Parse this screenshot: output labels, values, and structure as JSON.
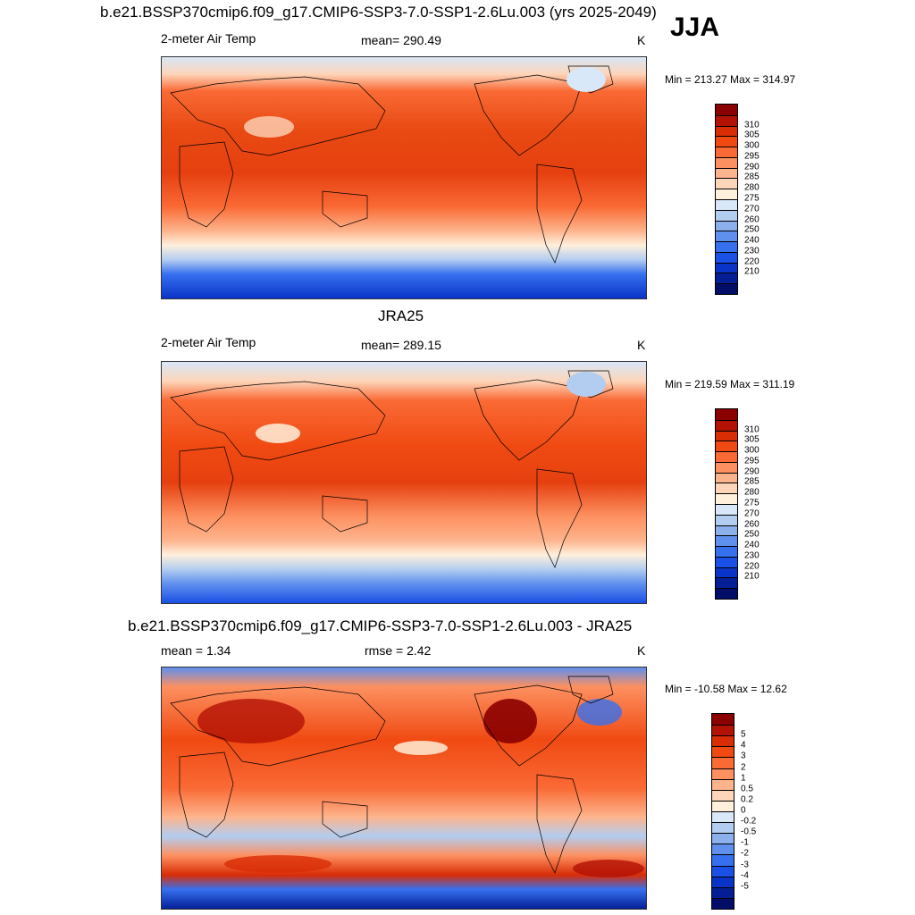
{
  "header": {
    "title": "b.e21.BSSP370cmip6.f09_g17.CMIP6-SSP3-7.0-SSP1-2.6Lu.003 (yrs 2025-2049)",
    "season": "JJA"
  },
  "panels": [
    {
      "id": "model",
      "variable": "2-meter Air Temp",
      "stat_label": "mean= 290.49",
      "units": "K",
      "minmax": "Min = 213.27 Max = 314.97",
      "colorbar": {
        "colors": [
          "#8b0000",
          "#b31205",
          "#d92d06",
          "#f04a12",
          "#fa6a35",
          "#fd9060",
          "#fdb48d",
          "#fdd5b9",
          "#fff0dc",
          "#d8e8f8",
          "#b2cdf0",
          "#8bb0ec",
          "#6090ee",
          "#3670ef",
          "#1a50e6",
          "#0a34c8",
          "#041f96",
          "#020d6a"
        ],
        "labels": [
          "310",
          "305",
          "300",
          "295",
          "290",
          "285",
          "280",
          "275",
          "270",
          "260",
          "250",
          "240",
          "230",
          "220",
          "210"
        ]
      }
    },
    {
      "id": "obs",
      "panel_title": "JRA25",
      "variable": "2-meter Air Temp",
      "stat_label": "mean= 289.15",
      "units": "K",
      "minmax": "Min = 219.59 Max = 311.19",
      "colorbar": {
        "colors": [
          "#8b0000",
          "#b31205",
          "#d92d06",
          "#f04a12",
          "#fa6a35",
          "#fd9060",
          "#fdb48d",
          "#fdd5b9",
          "#fff0dc",
          "#d8e8f8",
          "#b2cdf0",
          "#8bb0ec",
          "#6090ee",
          "#3670ef",
          "#1a50e6",
          "#0a34c8",
          "#041f96",
          "#020d6a"
        ],
        "labels": [
          "310",
          "305",
          "300",
          "295",
          "290",
          "285",
          "280",
          "275",
          "270",
          "260",
          "250",
          "240",
          "230",
          "220",
          "210"
        ]
      }
    },
    {
      "id": "diff",
      "panel_title": "b.e21.BSSP370cmip6.f09_g17.CMIP6-SSP3-7.0-SSP1-2.6Lu.003 - JRA25",
      "mean_label": "mean =   1.34",
      "rmse_label": "rmse =   2.42",
      "units": "K",
      "minmax": "Min = -10.58 Max =  12.62",
      "colorbar": {
        "colors": [
          "#8b0000",
          "#b31205",
          "#d92d06",
          "#f04a12",
          "#fa6a35",
          "#fd9060",
          "#fdb48d",
          "#fdd5b9",
          "#fff0dc",
          "#d8e8f8",
          "#b2cdf0",
          "#8bb0ec",
          "#6090ee",
          "#3670ef",
          "#1a50e6",
          "#0a34c8",
          "#041f96",
          "#020d6a"
        ],
        "labels": [
          "5",
          "4",
          "3",
          "2",
          "1",
          "0.5",
          "0.2",
          "0",
          "-0.2",
          "-0.5",
          "-1",
          "-2",
          "-3",
          "-4",
          "-5"
        ]
      }
    }
  ]
}
